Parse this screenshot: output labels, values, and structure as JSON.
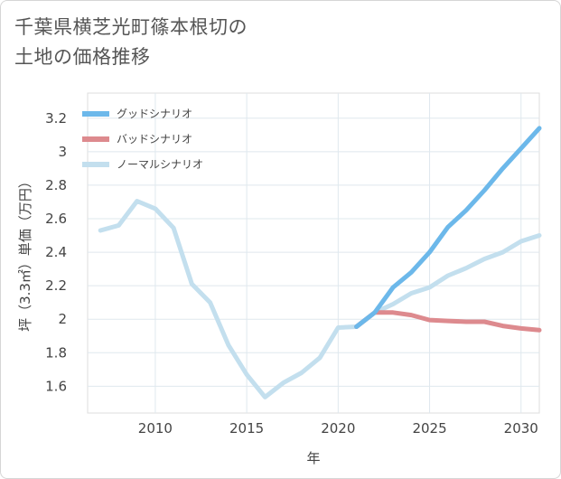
{
  "header": {
    "title_line1": "千葉県横芝光町篠本根切の",
    "title_line2": "土地の価格推移"
  },
  "chart_data": {
    "type": "line",
    "title": "千葉県横芝光町篠本根切の土地の価格推移",
    "xlabel": "年",
    "ylabel": "坪（3.3㎡）単価（万円）",
    "xlim": [
      2006.3,
      2031
    ],
    "ylim": [
      1.44,
      3.35
    ],
    "x_ticks": [
      2010,
      2015,
      2020,
      2025,
      2030
    ],
    "y_ticks": [
      1.6,
      1.8,
      2,
      2.2,
      2.4,
      2.6,
      2.8,
      3,
      3.2
    ],
    "x_tick_labels": [
      "2010",
      "2015",
      "2020",
      "2025",
      "2030"
    ],
    "y_tick_labels": [
      "1.6",
      "1.8",
      "2",
      "2.2",
      "2.4",
      "2.6",
      "2.8",
      "3",
      "3.2"
    ],
    "legend_position": "top-left",
    "series": [
      {
        "name": "グッドシナリオ",
        "color": "#6cb8ea",
        "x": [
          2021,
          2022,
          2023,
          2024,
          2025,
          2026,
          2027,
          2028,
          2029,
          2030,
          2031
        ],
        "y": [
          1.955,
          2.04,
          2.19,
          2.28,
          2.4,
          2.55,
          2.65,
          2.77,
          2.9,
          3.02,
          3.14
        ]
      },
      {
        "name": "バッドシナリオ",
        "color": "#dd8a8e",
        "x": [
          2021,
          2022,
          2023,
          2024,
          2025,
          2026,
          2027,
          2028,
          2029,
          2030,
          2031
        ],
        "y": [
          1.955,
          2.04,
          2.04,
          2.025,
          1.995,
          1.99,
          1.985,
          1.985,
          1.96,
          1.945,
          1.935
        ]
      },
      {
        "name": "ノーマルシナリオ",
        "color": "#c3dfee",
        "x": [
          2007,
          2008,
          2009,
          2010,
          2011,
          2012,
          2013,
          2014,
          2015,
          2016,
          2017,
          2018,
          2019,
          2020,
          2021,
          2022,
          2023,
          2024,
          2025,
          2026,
          2027,
          2028,
          2029,
          2030,
          2031
        ],
        "y": [
          2.53,
          2.56,
          2.705,
          2.66,
          2.545,
          2.21,
          2.1,
          1.845,
          1.67,
          1.535,
          1.62,
          1.68,
          1.77,
          1.95,
          1.955,
          2.04,
          2.09,
          2.155,
          2.19,
          2.26,
          2.305,
          2.36,
          2.4,
          2.465,
          2.5
        ]
      }
    ]
  }
}
